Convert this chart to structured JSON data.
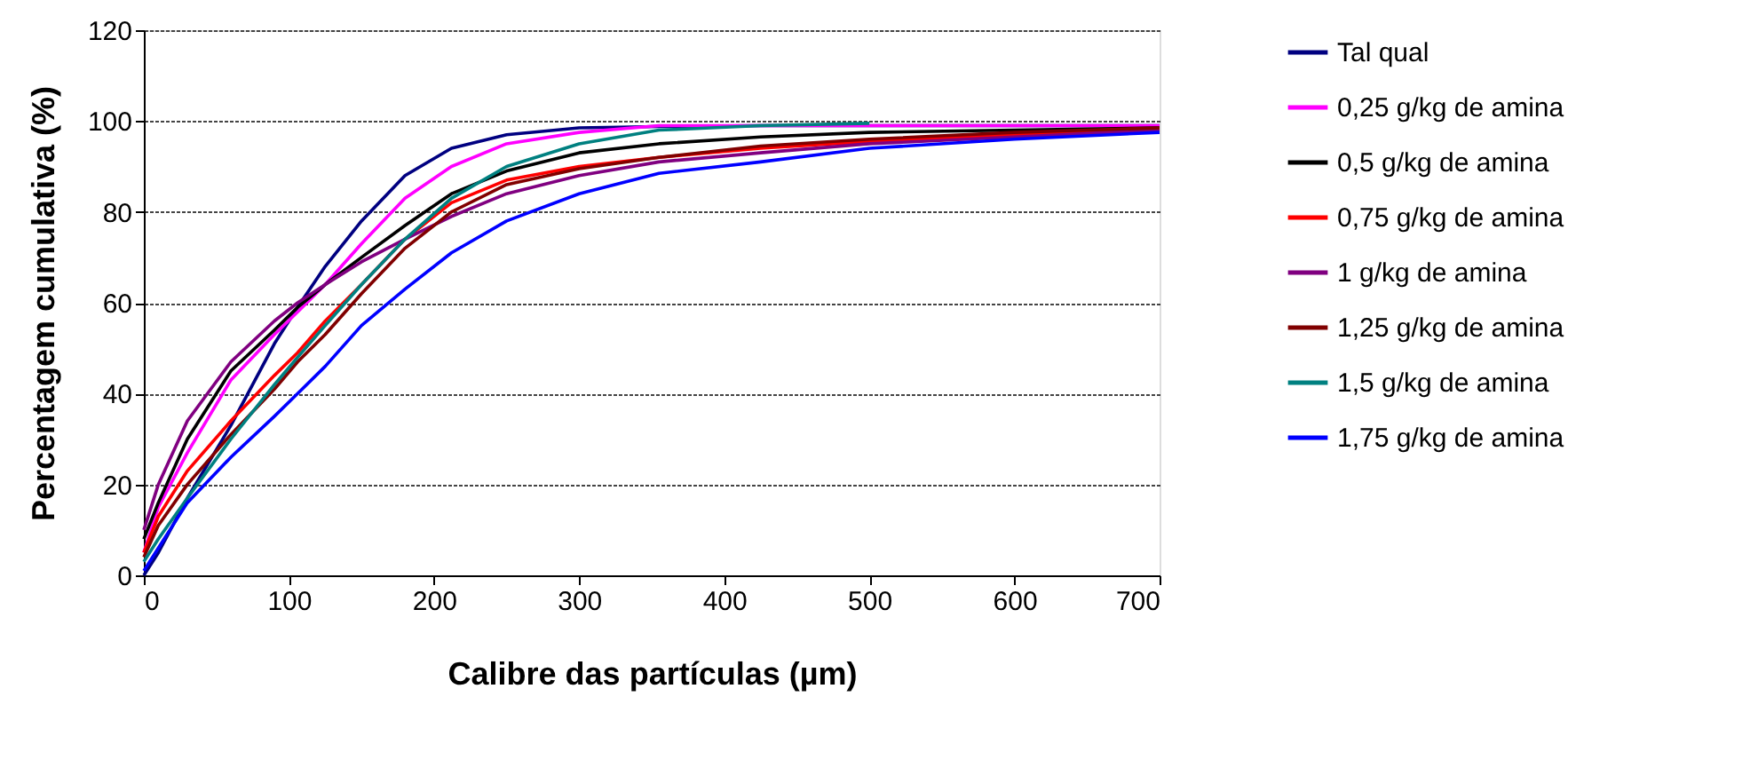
{
  "chart_data": {
    "type": "line",
    "xlabel": "Calibre das partículas (µm)",
    "ylabel": "Percentagem cumulativa (%)",
    "x": [
      0,
      10,
      30,
      60,
      90,
      106,
      125,
      150,
      180,
      212,
      250,
      300,
      355,
      425,
      500,
      600,
      700
    ],
    "xlim": [
      0,
      700
    ],
    "xticks": [
      0,
      100,
      200,
      300,
      400,
      500,
      600,
      700
    ],
    "ylim": [
      0,
      120
    ],
    "yticks": [
      0,
      20,
      40,
      60,
      80,
      100,
      120
    ],
    "grid": "y",
    "legend": "right",
    "marker": "none",
    "line_style": "solid",
    "series": [
      {
        "name": "Tal qual",
        "color": "#000080",
        "values": [
          0,
          5,
          17,
          33,
          51,
          59,
          68,
          78,
          88,
          94,
          97,
          98.5,
          98.8,
          99,
          99,
          99,
          99
        ]
      },
      {
        "name": "0,25 g/kg de amina",
        "color": "#ff00ff",
        "values": [
          5,
          15,
          27,
          43,
          53,
          58,
          64,
          73,
          83,
          90,
          95,
          97.5,
          99,
          99,
          99,
          99,
          99
        ]
      },
      {
        "name": "0,5 g/kg de amina",
        "color": "#000000",
        "values": [
          8,
          16,
          30,
          45,
          54,
          59,
          64,
          70,
          77,
          84,
          89,
          93,
          95,
          96.5,
          97.5,
          98,
          98.5
        ]
      },
      {
        "name": "0,75 g/kg de amina",
        "color": "#ff0000",
        "values": [
          5,
          13,
          23,
          34,
          44,
          49,
          56,
          64,
          74,
          82,
          87,
          90,
          92,
          94,
          95.5,
          97,
          98
        ]
      },
      {
        "name": "1 g/kg de amina",
        "color": "#800080",
        "values": [
          10,
          20,
          34,
          47,
          56,
          60,
          64,
          69,
          74,
          79,
          84,
          88,
          91,
          93,
          95,
          96.5,
          98
        ]
      },
      {
        "name": "1,25 g/kg de amina",
        "color": "#800000",
        "values": [
          4,
          11,
          20,
          31,
          41,
          47,
          53,
          62,
          72,
          80,
          86,
          89.5,
          92,
          94.5,
          96,
          97.5,
          98.5
        ]
      },
      {
        "name": "1,5 g/kg de amina",
        "color": "#008080",
        "values": [
          3,
          8,
          17,
          30,
          42,
          48,
          55,
          64,
          74,
          83,
          90,
          95,
          98,
          99,
          99.5,
          null,
          null
        ]
      },
      {
        "name": "1,75 g/kg de amina",
        "color": "#0000ff",
        "values": [
          1,
          6,
          16,
          26,
          35,
          40,
          46,
          55,
          63,
          71,
          78,
          84,
          88.5,
          91,
          94,
          96,
          97.5
        ]
      }
    ]
  }
}
